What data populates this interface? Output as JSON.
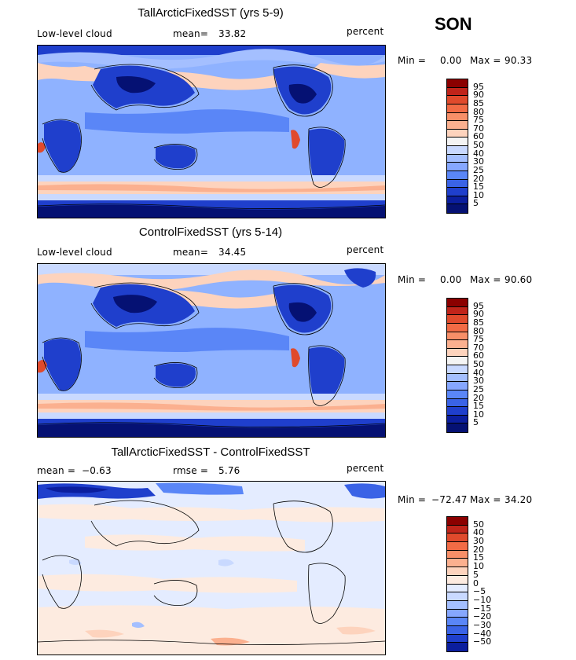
{
  "season": "SON",
  "panels": [
    {
      "title": "TallArcticFixedSST (yrs 5-9)",
      "left_label": "Low-level cloud",
      "mean_label": "mean=",
      "mean_value": "33.82",
      "units": "percent",
      "minmax_label": "Min =",
      "min_value": "0.00",
      "max_label": "Max =",
      "max_value": "90.33",
      "colorbar": {
        "labels": [
          "95",
          "90",
          "85",
          "80",
          "75",
          "70",
          "60",
          "50",
          "40",
          "30",
          "25",
          "20",
          "15",
          "10",
          "5"
        ],
        "colors": [
          "#8b0000",
          "#c0241a",
          "#e04a2c",
          "#f26b45",
          "#f88f68",
          "#fbb08f",
          "#fdd3bd",
          "#f4f4f4",
          "#c9d9ff",
          "#a4bfff",
          "#86a7ff",
          "#5a86f7",
          "#3a63e6",
          "#1f3fcc",
          "#0b1e9e",
          "#051173"
        ]
      }
    },
    {
      "title": "ControlFixedSST (yrs 5-14)",
      "left_label": "Low-level cloud",
      "mean_label": "mean=",
      "mean_value": "34.45",
      "units": "percent",
      "minmax_label": "Min =",
      "min_value": "0.00",
      "max_label": "Max =",
      "max_value": "90.60",
      "colorbar": {
        "labels": [
          "95",
          "90",
          "85",
          "80",
          "75",
          "70",
          "60",
          "50",
          "40",
          "30",
          "25",
          "20",
          "15",
          "10",
          "5"
        ],
        "colors": [
          "#8b0000",
          "#c0241a",
          "#e04a2c",
          "#f26b45",
          "#f88f68",
          "#fbb08f",
          "#fdd3bd",
          "#f4f4f4",
          "#c9d9ff",
          "#a4bfff",
          "#86a7ff",
          "#5a86f7",
          "#3a63e6",
          "#1f3fcc",
          "#0b1e9e",
          "#051173"
        ]
      }
    },
    {
      "title": "TallArcticFixedSST - ControlFixedSST",
      "left_label": "mean =",
      "mean_label": "",
      "mean_value": "−0.63",
      "rmse_label": "rmse =",
      "rmse_value": "5.76",
      "units": "percent",
      "minmax_label": "Min =",
      "min_value": "−72.47",
      "max_label": "Max =",
      "max_value": "34.20",
      "colorbar": {
        "labels": [
          "50",
          "40",
          "30",
          "20",
          "15",
          "10",
          "5",
          "0",
          "−5",
          "−10",
          "−15",
          "−20",
          "−30",
          "−40",
          "−50"
        ],
        "colors": [
          "#8b0000",
          "#c0241a",
          "#e04a2c",
          "#f26b45",
          "#f88f68",
          "#fbb08f",
          "#fdd3bd",
          "#fdebe0",
          "#e4ecff",
          "#c9d9ff",
          "#a4bfff",
          "#86a7ff",
          "#5a86f7",
          "#3a63e6",
          "#1f3fcc",
          "#0b1e9e"
        ]
      }
    }
  ]
}
